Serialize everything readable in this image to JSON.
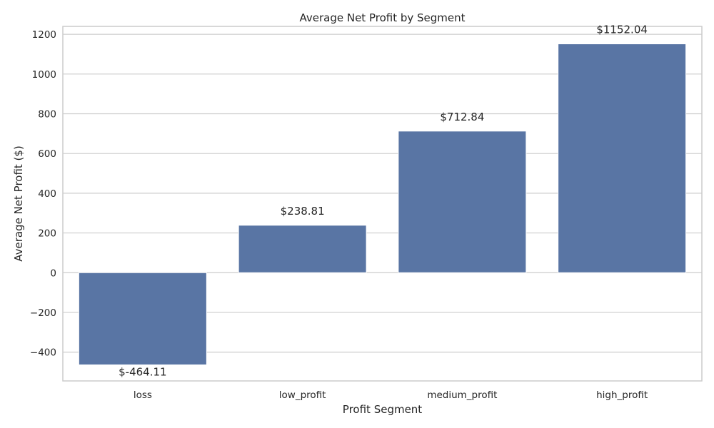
{
  "chart_data": {
    "type": "bar",
    "title": "Average Net Profit by Segment",
    "xlabel": "Profit Segment",
    "ylabel": "Average Net Profit ($)",
    "categories": [
      "loss",
      "low_profit",
      "medium_profit",
      "high_profit"
    ],
    "values": [
      -464.11,
      238.81,
      712.84,
      1152.04
    ],
    "data_labels": [
      "$-464.11",
      "$238.81",
      "$712.84",
      "$1152.04"
    ],
    "yticks": [
      -400,
      -200,
      0,
      200,
      400,
      600,
      800,
      1000,
      1200
    ],
    "ytick_labels": [
      "−400",
      "−200",
      "0",
      "200",
      "400",
      "600",
      "800",
      "1000",
      "1200"
    ],
    "ylim": [
      -545,
      1240
    ],
    "grid": true,
    "legend": "none",
    "colors": {
      "bar": "#5975a4",
      "grid": "#cccccc",
      "text": "#262626"
    }
  }
}
